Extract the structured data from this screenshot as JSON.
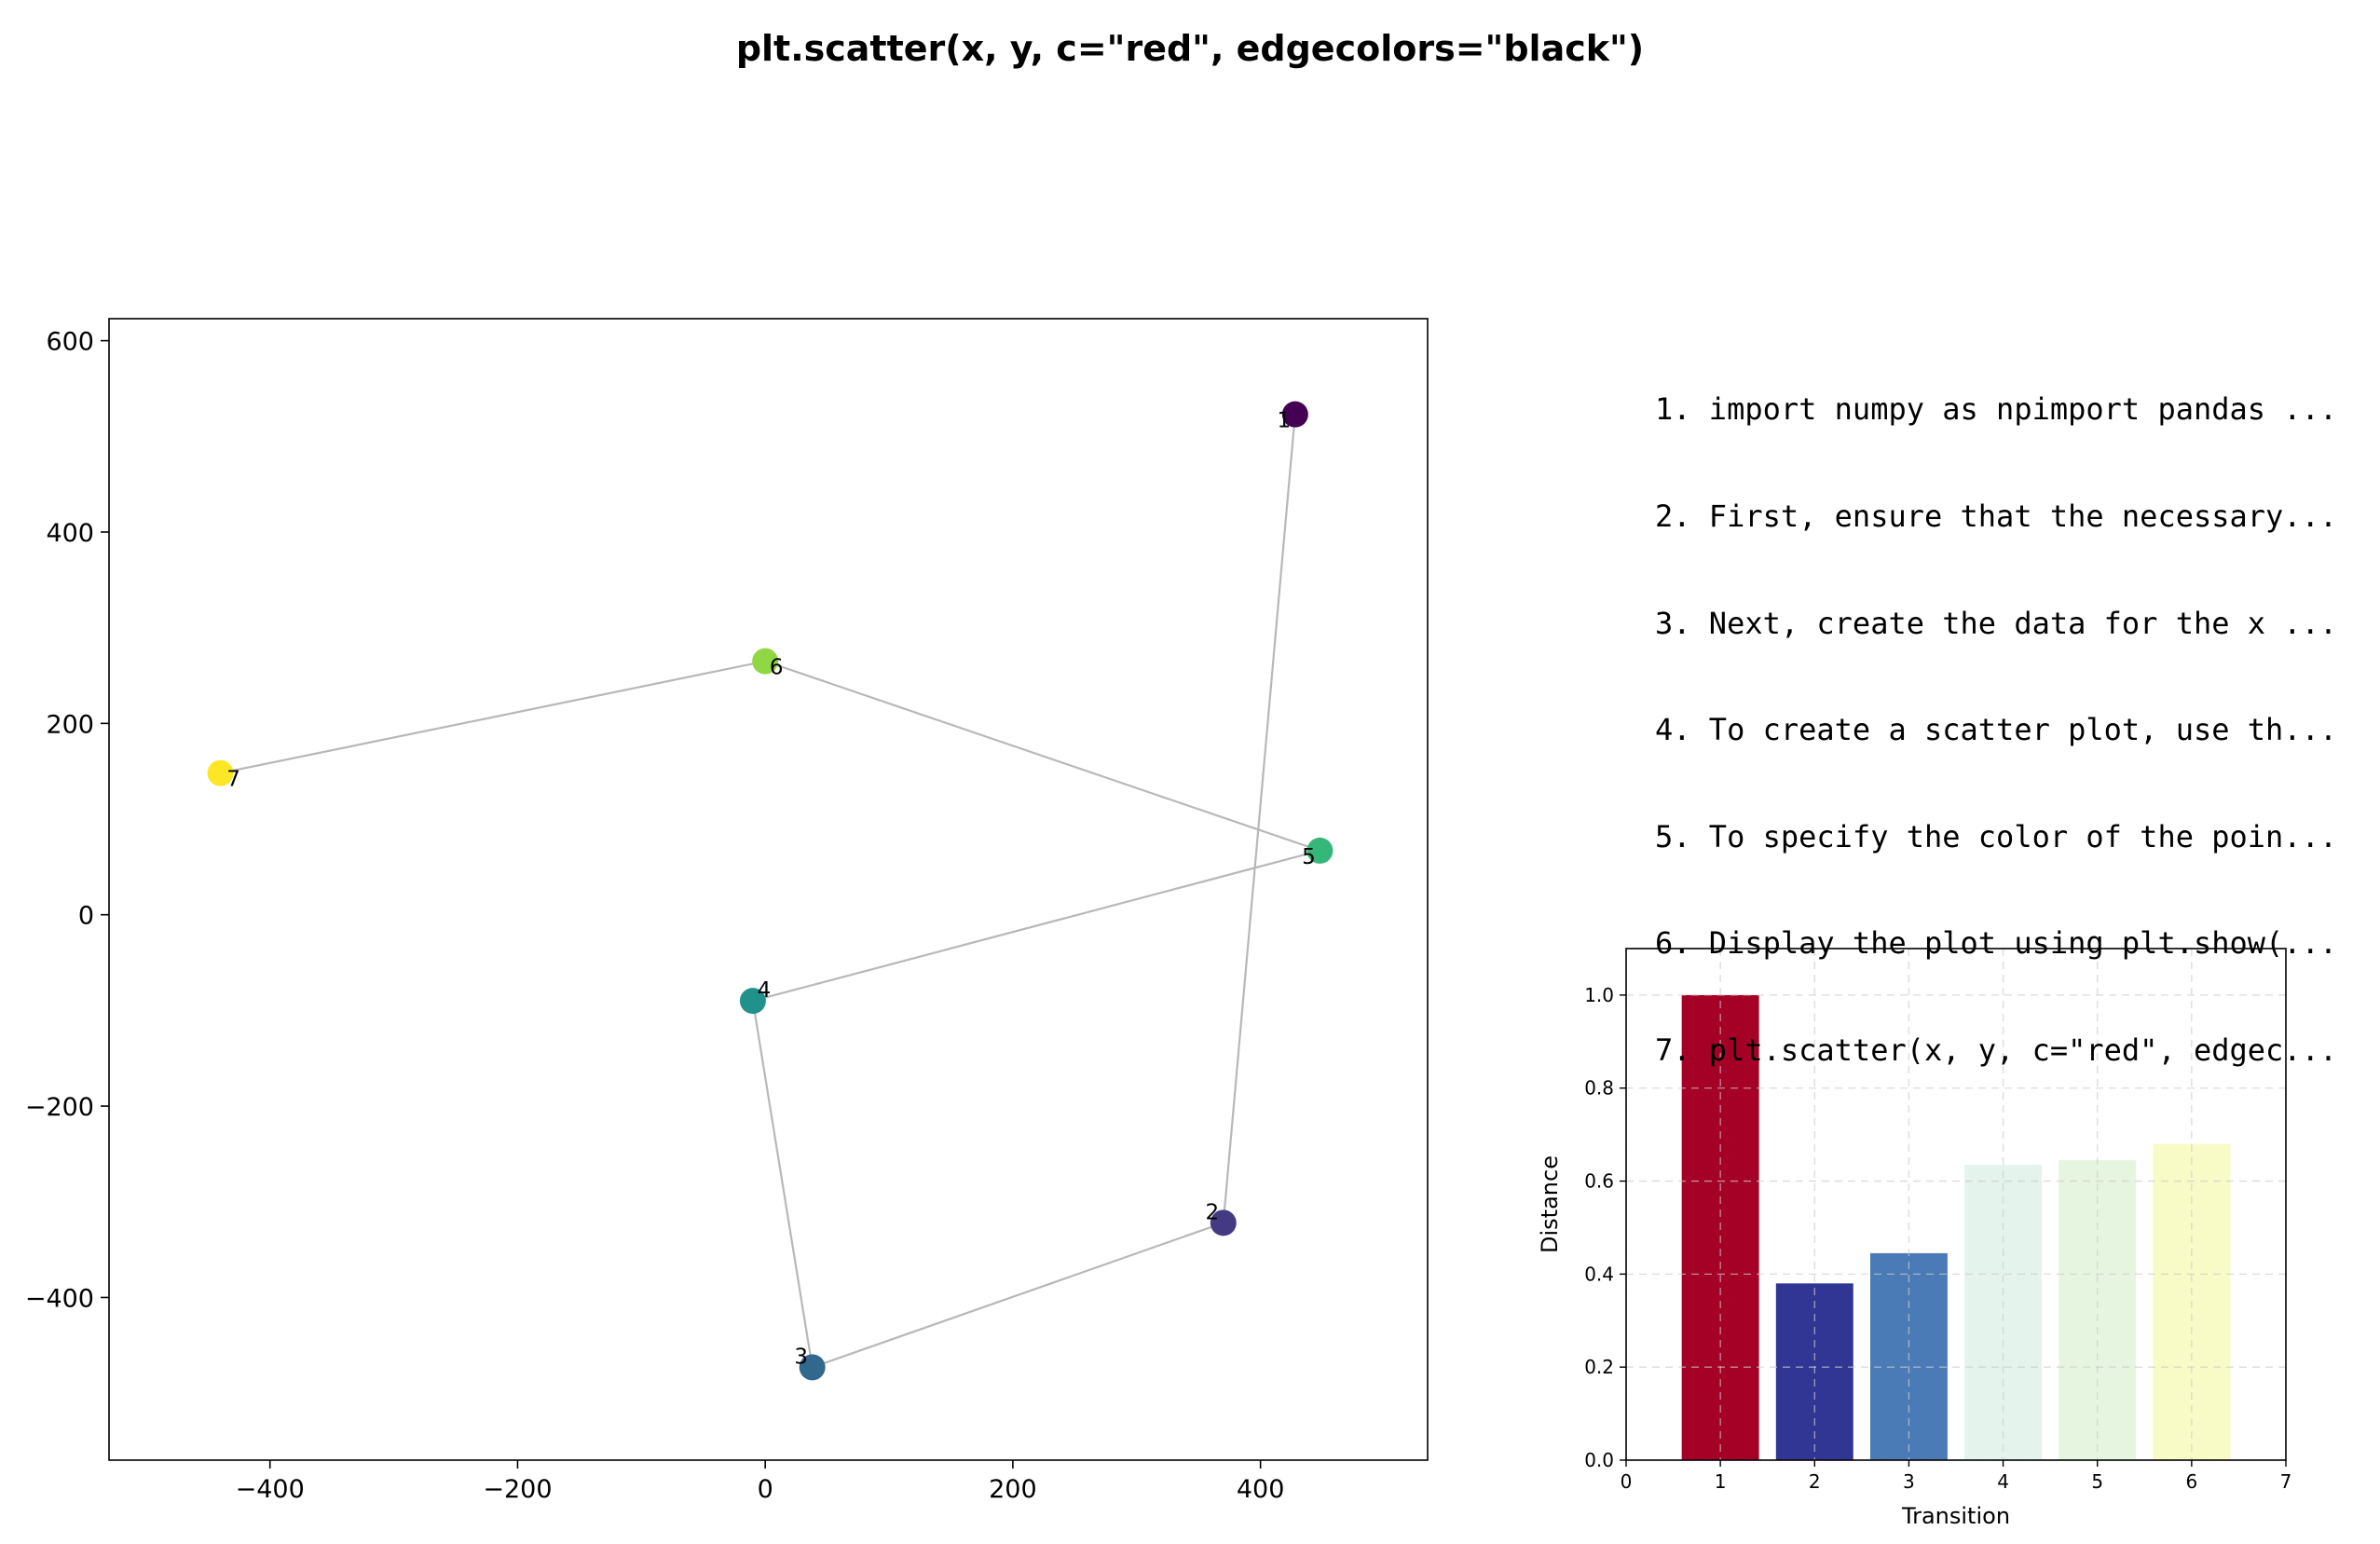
{
  "figure": {
    "title": "plt.scatter(x, y, c=\"red\", edgecolors=\"black\")"
  },
  "steps": [
    "1. import numpy as npimport pandas ...",
    "2. First, ensure that the necessary...",
    "3. Next, create the data for the x ...",
    "4. To create a scatter plot, use th...",
    "5. To specify the color of the poin...",
    "6. Display the plot using plt.show(...",
    "7. plt.scatter(x, y, c=\"red\", edgec..."
  ],
  "chart_data": [
    {
      "type": "scatter",
      "title": "",
      "xlabel": "",
      "ylabel": "",
      "xlim": [
        -530,
        535
      ],
      "ylim": [
        -570,
        623
      ],
      "xticks": [
        -400,
        -200,
        0,
        200,
        400
      ],
      "yticks": [
        -400,
        -200,
        0,
        200,
        400,
        600
      ],
      "connect_points": true,
      "line_color": "#b8b8b8",
      "colormap": "viridis",
      "points": [
        {
          "label": "1",
          "x": 428,
          "y": 523,
          "color": "#440154"
        },
        {
          "label": "2",
          "x": 370,
          "y": -322,
          "color": "#443983"
        },
        {
          "label": "3",
          "x": 38,
          "y": -473,
          "color": "#31688e"
        },
        {
          "label": "4",
          "x": -10,
          "y": -90,
          "color": "#21918c"
        },
        {
          "label": "5",
          "x": 448,
          "y": 67,
          "color": "#35b779"
        },
        {
          "label": "6",
          "x": 0,
          "y": 265,
          "color": "#90d743"
        },
        {
          "label": "7",
          "x": -440,
          "y": 148,
          "color": "#fde725"
        }
      ]
    },
    {
      "type": "bar",
      "title": "",
      "xlabel": "Transition",
      "ylabel": "Distance",
      "xlim": [
        0,
        7
      ],
      "ylim": [
        0,
        1.1
      ],
      "xticks": [
        0,
        1,
        2,
        3,
        4,
        5,
        6,
        7
      ],
      "yticks": [
        0.0,
        0.2,
        0.4,
        0.6,
        0.8,
        1.0
      ],
      "grid": true,
      "categories": [
        1,
        2,
        3,
        4,
        5,
        6
      ],
      "values": [
        1.0,
        0.38,
        0.445,
        0.635,
        0.645,
        0.68
      ],
      "colors": [
        "#a50026",
        "#313695",
        "#4a7bb7",
        "#e4f4ec",
        "#e6f5e0",
        "#f9fbc6"
      ]
    }
  ]
}
